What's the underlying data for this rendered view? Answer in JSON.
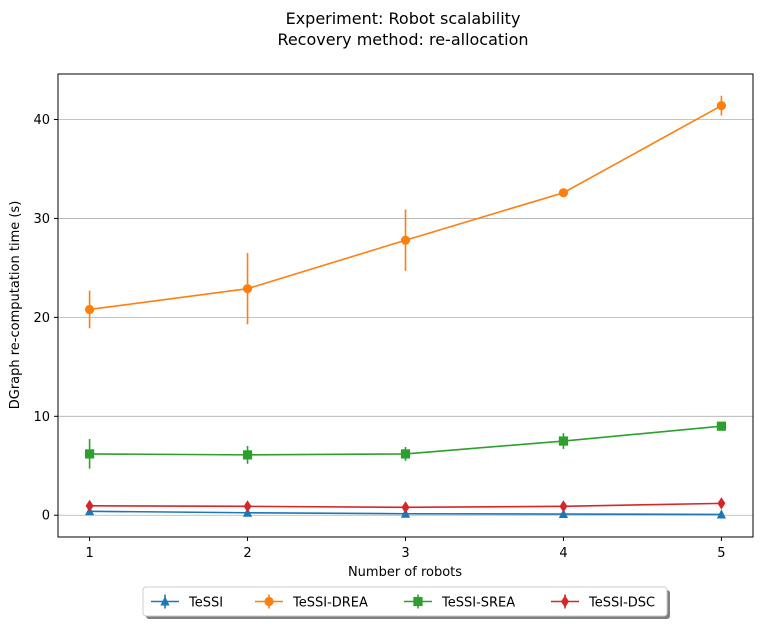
{
  "chart_data": {
    "type": "line",
    "title_lines": [
      "Experiment: Robot scalability",
      "Recovery method: re-allocation"
    ],
    "xlabel": "Number of robots",
    "ylabel": "DGraph re-computation time (s)",
    "x": [
      1,
      2,
      3,
      4,
      5
    ],
    "xlim": [
      0.8,
      5.2
    ],
    "ylim": [
      -2.2,
      44.6
    ],
    "yticks": [
      0,
      10,
      20,
      30,
      40
    ],
    "ygrid": true,
    "legend_position": "bottom-center",
    "series": [
      {
        "name": "TeSSI",
        "color": "#1f77b4",
        "marker": "triangle",
        "values": [
          0.4,
          0.25,
          0.15,
          0.12,
          0.08
        ],
        "errors": [
          0.1,
          0.08,
          0.06,
          0.05,
          0.04
        ]
      },
      {
        "name": "TeSSI-DREA",
        "color": "#ff7f0e",
        "marker": "circle",
        "values": [
          20.8,
          22.9,
          27.8,
          32.6,
          41.4
        ],
        "errors": [
          1.9,
          3.6,
          3.1,
          0.3,
          1.0
        ]
      },
      {
        "name": "TeSSI-SREA",
        "color": "#2ca02c",
        "marker": "square",
        "values": [
          6.2,
          6.1,
          6.2,
          7.5,
          9.0
        ],
        "errors": [
          1.5,
          0.9,
          0.7,
          0.8,
          0.3
        ]
      },
      {
        "name": "TeSSI-DSC",
        "color": "#d62728",
        "marker": "diamond",
        "values": [
          0.95,
          0.9,
          0.8,
          0.9,
          1.2
        ],
        "errors": [
          0.15,
          0.1,
          0.1,
          0.1,
          0.15
        ]
      }
    ]
  }
}
